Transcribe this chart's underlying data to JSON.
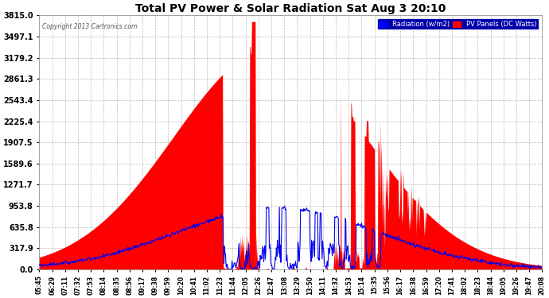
{
  "title": "Total PV Power & Solar Radiation Sat Aug 3 20:10",
  "copyright": "Copyright 2013 Cartronics.com",
  "background_color": "#ffffff",
  "plot_bg_color": "#ffffff",
  "legend_radiation_color": "#0000ff",
  "legend_pv_color": "#ff0000",
  "yticks": [
    0.0,
    317.9,
    635.8,
    953.8,
    1271.7,
    1589.6,
    1907.5,
    2225.4,
    2543.4,
    2861.3,
    3179.2,
    3497.1,
    3815.0
  ],
  "ymax": 3815.0,
  "ymin": 0.0,
  "xtick_labels": [
    "05:45",
    "06:29",
    "07:11",
    "07:32",
    "07:53",
    "08:14",
    "08:35",
    "08:56",
    "09:17",
    "09:38",
    "09:59",
    "10:20",
    "10:41",
    "11:02",
    "11:23",
    "11:44",
    "12:05",
    "12:26",
    "12:47",
    "13:08",
    "13:29",
    "13:50",
    "14:11",
    "14:32",
    "14:53",
    "15:14",
    "15:35",
    "15:56",
    "16:17",
    "16:38",
    "16:59",
    "17:20",
    "17:41",
    "18:02",
    "18:23",
    "18:44",
    "19:05",
    "19:26",
    "19:47",
    "20:08"
  ],
  "grid_color": "#aaaaaa",
  "pv_color": "#ff0000",
  "radiation_color": "#0000ee",
  "title_color": "#000000",
  "tick_color": "#000000",
  "figsize": [
    6.9,
    3.75
  ],
  "dpi": 100
}
